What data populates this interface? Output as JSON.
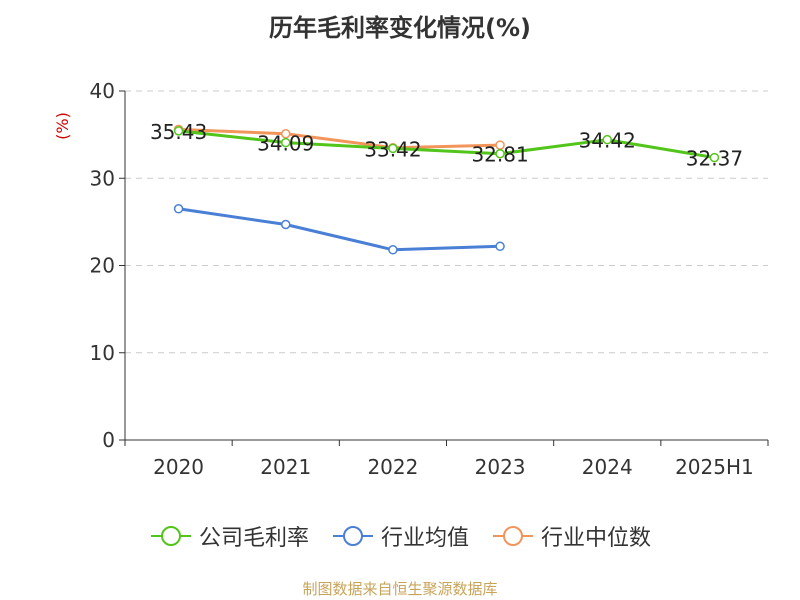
{
  "colors": {
    "gross_margin": "#52c41a",
    "industry_avg": "#4a7fd6",
    "industry_median": "#f2955a",
    "unit_label": "#cc0000",
    "source_note": "#c8a45a",
    "grid": "#cccccc",
    "axis": "#333333"
  },
  "chart_data": {
    "type": "line",
    "title": "历年毛利率变化情况(%)",
    "ylabel": "(%)",
    "xlabel": "",
    "categories": [
      "2020",
      "2021",
      "2022",
      "2023",
      "2024",
      "2025H1"
    ],
    "ylim": [
      0,
      40
    ],
    "yticks": [
      0,
      10,
      20,
      30,
      40
    ],
    "grid": true,
    "legend_position": "bottom",
    "series": [
      {
        "name": "公司毛利率",
        "color": "#52c41a",
        "values": [
          35.43,
          34.09,
          33.42,
          32.81,
          34.42,
          32.37
        ],
        "labels": [
          "35.43",
          "34.09",
          "33.42",
          "32.81",
          "34.42",
          "32.37"
        ]
      },
      {
        "name": "行业均值",
        "color": "#4a7fd6",
        "values": [
          26.5,
          24.7,
          21.8,
          22.2,
          null,
          null
        ]
      },
      {
        "name": "行业中位数",
        "color": "#f2955a",
        "values": [
          35.6,
          35.1,
          33.5,
          33.8,
          null,
          null
        ]
      }
    ]
  },
  "source_note": "制图数据来自恒生聚源数据库"
}
